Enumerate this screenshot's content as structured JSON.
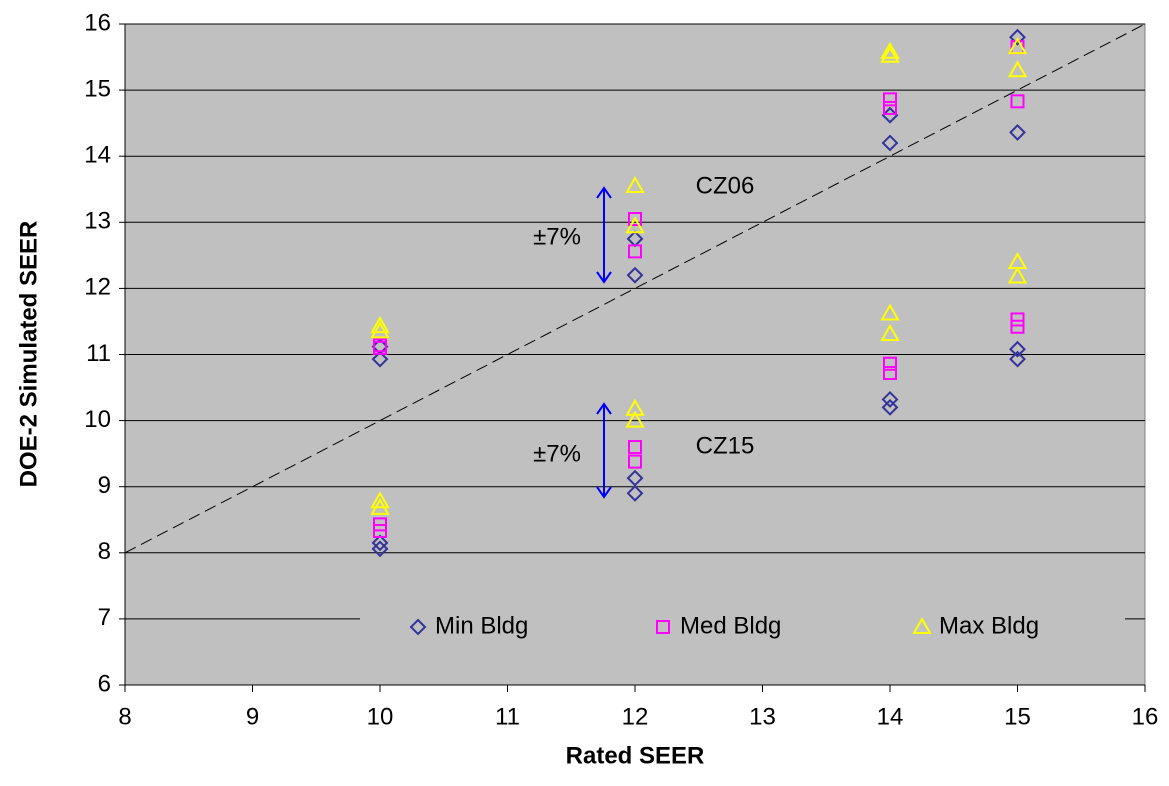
{
  "chart_data": {
    "type": "scatter",
    "xlabel": "Rated SEER",
    "ylabel": "DOE-2 Simulated SEER",
    "xlim": [
      8,
      16
    ],
    "xticks": [
      8,
      9,
      10,
      11,
      12,
      13,
      14,
      15,
      16
    ],
    "ylim": [
      6,
      16
    ],
    "yticks": [
      6,
      7,
      8,
      9,
      10,
      11,
      12,
      13,
      14,
      15,
      16
    ],
    "grid": true,
    "legend": "bottom",
    "annotations": [
      "CZ06",
      "CZ15",
      "±7%",
      "±7%"
    ],
    "series": [
      {
        "name": "Min Bldg",
        "color": "#333399",
        "marker": "diamond",
        "x": [
          10,
          10,
          10,
          10,
          12,
          12,
          12,
          12,
          14,
          14,
          14,
          14,
          15,
          15,
          15,
          15
        ],
        "values": [
          11.12,
          10.93,
          8.15,
          8.06,
          12.75,
          12.2,
          9.13,
          8.9,
          14.62,
          14.2,
          10.32,
          10.2,
          15.8,
          14.36,
          11.08,
          10.93
        ]
      },
      {
        "name": "Med Bldg",
        "color": "#ff00ff",
        "marker": "square",
        "x": [
          10,
          10,
          10,
          10,
          12,
          12,
          12,
          12,
          14,
          14,
          14,
          14,
          15,
          15,
          15,
          15
        ],
        "values": [
          11.14,
          11.1,
          8.43,
          8.33,
          13.05,
          12.56,
          9.6,
          9.38,
          14.86,
          14.73,
          10.86,
          10.72,
          15.65,
          14.83,
          11.53,
          11.42
        ]
      },
      {
        "name": "Max Bldg",
        "color": "#ffff00",
        "marker": "triangle",
        "x": [
          10,
          10,
          10,
          10,
          12,
          12,
          12,
          12,
          14,
          14,
          14,
          14,
          15,
          15,
          15,
          15
        ],
        "values": [
          11.43,
          11.35,
          8.78,
          8.68,
          13.55,
          12.94,
          10.18,
          10.0,
          15.58,
          15.52,
          11.62,
          11.31,
          15.3,
          15.65,
          12.4,
          12.18
        ]
      }
    ]
  }
}
